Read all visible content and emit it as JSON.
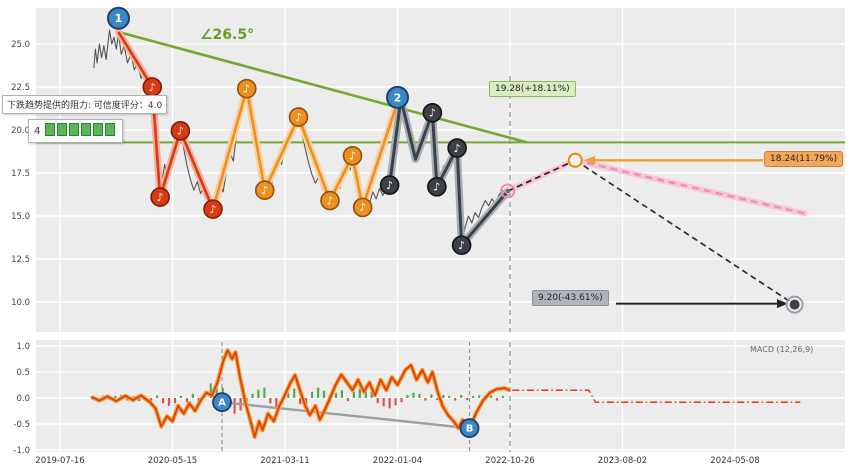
{
  "figure": {
    "bg": "#ffffff",
    "panel_bg": "#ececec",
    "grid_color": "#ffffff"
  },
  "colors": {
    "price_line": "#555555",
    "trend_green": "#74a832",
    "zigzag_red": "#d93a14",
    "zigzag_red_halo": "#f2b09e",
    "zigzag_orange": "#ef8f1f",
    "zigzag_orange_halo": "#f8d2a2",
    "zigzag_dark": "#3c4148",
    "zigzag_dark_halo": "#a8adb3",
    "projection_pink": "#ee8fb4",
    "projection_pink_halo": "#f8c6da",
    "projection_dark": "#2b2f33",
    "marker_blue": "#3d87c8",
    "macd_red": "#e03a10",
    "macd_orange": "#f0a030",
    "hist_green": "#57a65a",
    "hist_red": "#d9534f",
    "gray_line": "#9aa0a6",
    "vline_gray": "#8a9097"
  },
  "icons": {
    "note": "♪"
  },
  "annotations": {
    "resistance_tooltip": "下跌趋势提供的阻力: 可信度评分：4.0",
    "mini_value": "4",
    "mini_icon_count": 6,
    "angle_label": "∠26.5°",
    "green_target": "19.28(+18.11%)",
    "orange_target": "18.24(11.79%)",
    "gray_target": "9.20(-43.61%)",
    "macd_legend": "MACD (12,26,9)"
  },
  "chart_data": {
    "type": "line",
    "x_ticks": [
      {
        "t": 0,
        "label": "2019-07-16"
      },
      {
        "t": 1,
        "label": "2020-05-15"
      },
      {
        "t": 2,
        "label": "2021-03-11"
      },
      {
        "t": 3,
        "label": "2022-01-04"
      },
      {
        "t": 4,
        "label": "2022-10-26"
      },
      {
        "t": 5,
        "label": "2023-08-02"
      },
      {
        "t": 6,
        "label": "2024-05-08"
      }
    ],
    "price_panel": {
      "y_ticks": [
        25.0,
        22.5,
        20.0,
        17.5,
        15.0,
        12.5,
        10.0
      ],
      "ylim": [
        8.3,
        27.0
      ],
      "price_line": [
        [
          0.3,
          23.6
        ],
        [
          0.315,
          24.7
        ],
        [
          0.33,
          23.9
        ],
        [
          0.35,
          25.0
        ],
        [
          0.37,
          24.2
        ],
        [
          0.39,
          24.9
        ],
        [
          0.41,
          24.1
        ],
        [
          0.44,
          25.8
        ],
        [
          0.46,
          25.0
        ],
        [
          0.48,
          25.4
        ],
        [
          0.5,
          24.7
        ],
        [
          0.52,
          25.6
        ],
        [
          0.545,
          24.4
        ],
        [
          0.57,
          24.9
        ],
        [
          0.6,
          23.9
        ],
        [
          0.63,
          24.4
        ],
        [
          0.66,
          23.5
        ],
        [
          0.69,
          23.9
        ],
        [
          0.72,
          23.0
        ],
        [
          0.75,
          23.4
        ],
        [
          0.78,
          22.7
        ],
        [
          0.8,
          23.1
        ],
        [
          0.82,
          22.5
        ],
        [
          0.84,
          21.3
        ],
        [
          0.86,
          20.0
        ],
        [
          0.88,
          17.8
        ],
        [
          0.89,
          16.1
        ],
        [
          0.91,
          17.2
        ],
        [
          0.93,
          18.0
        ],
        [
          0.95,
          17.3
        ],
        [
          0.98,
          18.3
        ],
        [
          1.01,
          19.3
        ],
        [
          1.04,
          18.7
        ],
        [
          1.07,
          19.9
        ],
        [
          1.1,
          18.9
        ],
        [
          1.13,
          17.9
        ],
        [
          1.16,
          17.1
        ],
        [
          1.19,
          16.5
        ],
        [
          1.22,
          17.0
        ],
        [
          1.25,
          16.3
        ],
        [
          1.28,
          16.8
        ],
        [
          1.31,
          16.0
        ],
        [
          1.34,
          15.7
        ],
        [
          1.36,
          15.4
        ],
        [
          1.39,
          16.1
        ],
        [
          1.42,
          16.9
        ],
        [
          1.45,
          16.4
        ],
        [
          1.48,
          17.6
        ],
        [
          1.51,
          18.7
        ],
        [
          1.54,
          18.2
        ],
        [
          1.57,
          19.8
        ],
        [
          1.6,
          21.0
        ],
        [
          1.63,
          21.7
        ],
        [
          1.66,
          22.4
        ],
        [
          1.68,
          21.4
        ],
        [
          1.71,
          20.2
        ],
        [
          1.74,
          19.0
        ],
        [
          1.77,
          18.0
        ],
        [
          1.8,
          17.0
        ],
        [
          1.82,
          16.5
        ],
        [
          1.85,
          17.2
        ],
        [
          1.88,
          16.8
        ],
        [
          1.91,
          17.8
        ],
        [
          1.94,
          18.4
        ],
        [
          1.97,
          18.0
        ],
        [
          2.0,
          19.2
        ],
        [
          2.03,
          19.9
        ],
        [
          2.06,
          19.5
        ],
        [
          2.09,
          20.3
        ],
        [
          2.12,
          20.75
        ],
        [
          2.15,
          19.8
        ],
        [
          2.18,
          18.9
        ],
        [
          2.21,
          18.1
        ],
        [
          2.24,
          17.4
        ],
        [
          2.27,
          16.9
        ],
        [
          2.3,
          17.3
        ],
        [
          2.33,
          16.6
        ],
        [
          2.36,
          16.2
        ],
        [
          2.38,
          16.5
        ],
        [
          2.4,
          15.9
        ],
        [
          2.43,
          16.4
        ],
        [
          2.46,
          17.0
        ],
        [
          2.49,
          16.6
        ],
        [
          2.52,
          17.5
        ],
        [
          2.55,
          18.0
        ],
        [
          2.58,
          17.7
        ],
        [
          2.6,
          18.5
        ],
        [
          2.62,
          17.6
        ],
        [
          2.64,
          16.6
        ],
        [
          2.66,
          16.0
        ],
        [
          2.69,
          15.5
        ],
        [
          2.72,
          16.1
        ],
        [
          2.75,
          15.7
        ],
        [
          2.78,
          16.4
        ],
        [
          2.81,
          16.0
        ],
        [
          2.84,
          16.6
        ],
        [
          2.87,
          16.2
        ],
        [
          2.9,
          16.6
        ],
        [
          2.93,
          16.8
        ],
        [
          2.95,
          18.3
        ],
        [
          2.97,
          19.8
        ],
        [
          3.0,
          21.5
        ],
        [
          3.03,
          21.9
        ],
        [
          3.06,
          21.4
        ],
        [
          3.09,
          20.4
        ],
        [
          3.12,
          19.2
        ],
        [
          3.15,
          18.3
        ],
        [
          3.18,
          18.8
        ],
        [
          3.21,
          19.5
        ],
        [
          3.24,
          20.1
        ],
        [
          3.27,
          20.5
        ],
        [
          3.31,
          21.0
        ],
        [
          3.33,
          19.2
        ],
        [
          3.35,
          16.8
        ],
        [
          3.38,
          17.3
        ],
        [
          3.41,
          17.9
        ],
        [
          3.44,
          17.5
        ],
        [
          3.47,
          18.2
        ],
        [
          3.5,
          18.6
        ],
        [
          3.53,
          18.9
        ],
        [
          3.55,
          16.8
        ],
        [
          3.57,
          13.4
        ],
        [
          3.6,
          14.3
        ],
        [
          3.63,
          15.0
        ],
        [
          3.66,
          14.6
        ],
        [
          3.69,
          15.2
        ],
        [
          3.72,
          14.9
        ],
        [
          3.75,
          15.5
        ],
        [
          3.78,
          15.9
        ],
        [
          3.81,
          15.6
        ],
        [
          3.84,
          16.0
        ],
        [
          3.87,
          15.7
        ],
        [
          3.9,
          16.2
        ],
        [
          3.93,
          16.5
        ],
        [
          3.96,
          16.3
        ],
        [
          3.98,
          16.45
        ]
      ],
      "zigzag_red": [
        [
          0.52,
          25.7
        ],
        [
          0.82,
          22.5
        ],
        [
          0.89,
          16.1
        ],
        [
          1.07,
          19.95
        ],
        [
          1.36,
          15.4
        ]
      ],
      "zigzag_orange": [
        [
          1.36,
          15.4
        ],
        [
          1.66,
          22.4
        ],
        [
          1.82,
          16.5
        ],
        [
          2.12,
          20.75
        ],
        [
          2.4,
          15.9
        ],
        [
          2.6,
          18.5
        ],
        [
          2.69,
          15.5
        ],
        [
          3.0,
          21.6
        ]
      ],
      "zigzag_dark": [
        [
          2.93,
          16.8
        ],
        [
          3.03,
          21.8
        ],
        [
          3.16,
          18.3
        ],
        [
          3.31,
          21.0
        ],
        [
          3.35,
          16.7
        ],
        [
          3.53,
          18.95
        ],
        [
          3.57,
          13.3
        ],
        [
          3.98,
          16.45
        ]
      ],
      "notes_red": [
        [
          0.82,
          22.5
        ],
        [
          0.89,
          16.1
        ],
        [
          1.07,
          19.95
        ],
        [
          1.36,
          15.4
        ]
      ],
      "notes_orange": [
        [
          1.66,
          22.4
        ],
        [
          1.82,
          16.5
        ],
        [
          2.12,
          20.75
        ],
        [
          2.4,
          15.9
        ],
        [
          2.6,
          18.5
        ],
        [
          2.69,
          15.5
        ]
      ],
      "notes_dark": [
        [
          2.93,
          16.8
        ],
        [
          3.31,
          21.0
        ],
        [
          3.35,
          16.7
        ],
        [
          3.53,
          18.95
        ],
        [
          3.57,
          13.3
        ]
      ],
      "numbered_markers": [
        {
          "label": "1",
          "t": 0.52,
          "price": 26.5
        },
        {
          "label": "2",
          "t": 3.0,
          "price": 21.9
        }
      ],
      "downtrend_line": {
        "from": [
          0.52,
          25.7
        ],
        "to": [
          4.15,
          19.28
        ]
      },
      "resistance_level": 19.28,
      "last_point": {
        "t": 3.98,
        "price": 16.45
      },
      "breakout_point": {
        "t": 4.58,
        "price": 18.24
      },
      "down_target_point": {
        "t": 6.53,
        "price": 9.85
      },
      "projection_up": [
        [
          3.98,
          16.45
        ],
        [
          4.58,
          18.24
        ]
      ],
      "projection_pink": [
        [
          4.58,
          18.24
        ],
        [
          6.62,
          15.15
        ]
      ],
      "projection_down": [
        [
          4.58,
          18.24
        ],
        [
          6.53,
          9.85
        ]
      ],
      "vline_t": 4.0
    },
    "macd_panel": {
      "y_ticks": [
        1.0,
        0.5,
        0.0,
        -0.5,
        -1.0
      ],
      "macd_line": [
        [
          0.28,
          0.02
        ],
        [
          0.35,
          -0.05
        ],
        [
          0.42,
          0.03
        ],
        [
          0.5,
          -0.06
        ],
        [
          0.58,
          0.04
        ],
        [
          0.65,
          -0.04
        ],
        [
          0.72,
          0.05
        ],
        [
          0.8,
          -0.08
        ],
        [
          0.85,
          -0.2
        ],
        [
          0.9,
          -0.55
        ],
        [
          0.95,
          -0.35
        ],
        [
          1.0,
          -0.45
        ],
        [
          1.05,
          -0.15
        ],
        [
          1.1,
          -0.3
        ],
        [
          1.15,
          -0.1
        ],
        [
          1.2,
          -0.25
        ],
        [
          1.25,
          -0.05
        ],
        [
          1.3,
          0.1
        ],
        [
          1.35,
          0.05
        ],
        [
          1.4,
          0.3
        ],
        [
          1.45,
          0.7
        ],
        [
          1.49,
          0.92
        ],
        [
          1.53,
          0.75
        ],
        [
          1.56,
          0.88
        ],
        [
          1.6,
          0.4
        ],
        [
          1.65,
          -0.1
        ],
        [
          1.7,
          -0.5
        ],
        [
          1.73,
          -0.75
        ],
        [
          1.77,
          -0.45
        ],
        [
          1.8,
          -0.62
        ],
        [
          1.85,
          -0.3
        ],
        [
          1.9,
          -0.45
        ],
        [
          1.95,
          -0.15
        ],
        [
          2.0,
          0.06
        ],
        [
          2.05,
          0.3
        ],
        [
          2.09,
          0.44
        ],
        [
          2.14,
          0.1
        ],
        [
          2.18,
          -0.15
        ],
        [
          2.22,
          -0.33
        ],
        [
          2.27,
          -0.15
        ],
        [
          2.31,
          -0.42
        ],
        [
          2.36,
          -0.2
        ],
        [
          2.4,
          0.0
        ],
        [
          2.45,
          0.25
        ],
        [
          2.5,
          0.45
        ],
        [
          2.55,
          0.3
        ],
        [
          2.6,
          0.15
        ],
        [
          2.65,
          0.35
        ],
        [
          2.7,
          0.12
        ],
        [
          2.75,
          0.3
        ],
        [
          2.8,
          0.05
        ],
        [
          2.85,
          0.35
        ],
        [
          2.9,
          0.15
        ],
        [
          2.95,
          0.4
        ],
        [
          3.0,
          0.25
        ],
        [
          3.07,
          0.54
        ],
        [
          3.12,
          0.63
        ],
        [
          3.17,
          0.35
        ],
        [
          3.22,
          0.54
        ],
        [
          3.27,
          0.3
        ],
        [
          3.31,
          0.5
        ],
        [
          3.36,
          0.1
        ],
        [
          3.4,
          -0.15
        ],
        [
          3.45,
          -0.33
        ],
        [
          3.5,
          -0.45
        ],
        [
          3.54,
          -0.58
        ],
        [
          3.58,
          -0.42
        ],
        [
          3.64,
          -0.58
        ],
        [
          3.7,
          -0.28
        ],
        [
          3.76,
          -0.05
        ],
        [
          3.82,
          0.1
        ],
        [
          3.88,
          0.17
        ],
        [
          3.95,
          0.19
        ],
        [
          4.0,
          0.15
        ]
      ],
      "ext_line": [
        [
          4.02,
          0.15
        ],
        [
          4.7,
          0.15
        ],
        [
          4.76,
          -0.08
        ],
        [
          6.58,
          -0.08
        ]
      ],
      "histogram": {
        "t0": 0.28,
        "dt": 0.053,
        "values": [
          0.03,
          -0.04,
          0.05,
          -0.03,
          0.04,
          0.06,
          -0.05,
          0.03,
          -0.06,
          0.04,
          -0.07,
          0.05,
          -0.1,
          -0.15,
          -0.1,
          0.04,
          -0.08,
          0.08,
          -0.07,
          0.12,
          0.28,
          0.34,
          0.2,
          -0.14,
          -0.3,
          -0.24,
          -0.12,
          0.08,
          0.16,
          0.2,
          -0.1,
          -0.18,
          -0.12,
          0.1,
          0.18,
          -0.12,
          -0.16,
          0.12,
          0.2,
          0.14,
          -0.08,
          0.1,
          0.15,
          -0.06,
          0.12,
          0.18,
          0.16,
          0.12,
          -0.1,
          -0.16,
          -0.2,
          -0.14,
          -0.08,
          0.06,
          0.1,
          0.08,
          -0.05,
          0.07,
          -0.04,
          0.06,
          0.04,
          -0.05,
          0.06,
          -0.04,
          0.04,
          0.05,
          -0.04,
          0.05,
          -0.05,
          0.04
        ]
      },
      "ab_markers": [
        {
          "label": "A",
          "t": 1.44,
          "v": -0.08
        },
        {
          "label": "B",
          "t": 3.64,
          "v": -0.58
        }
      ]
    }
  }
}
